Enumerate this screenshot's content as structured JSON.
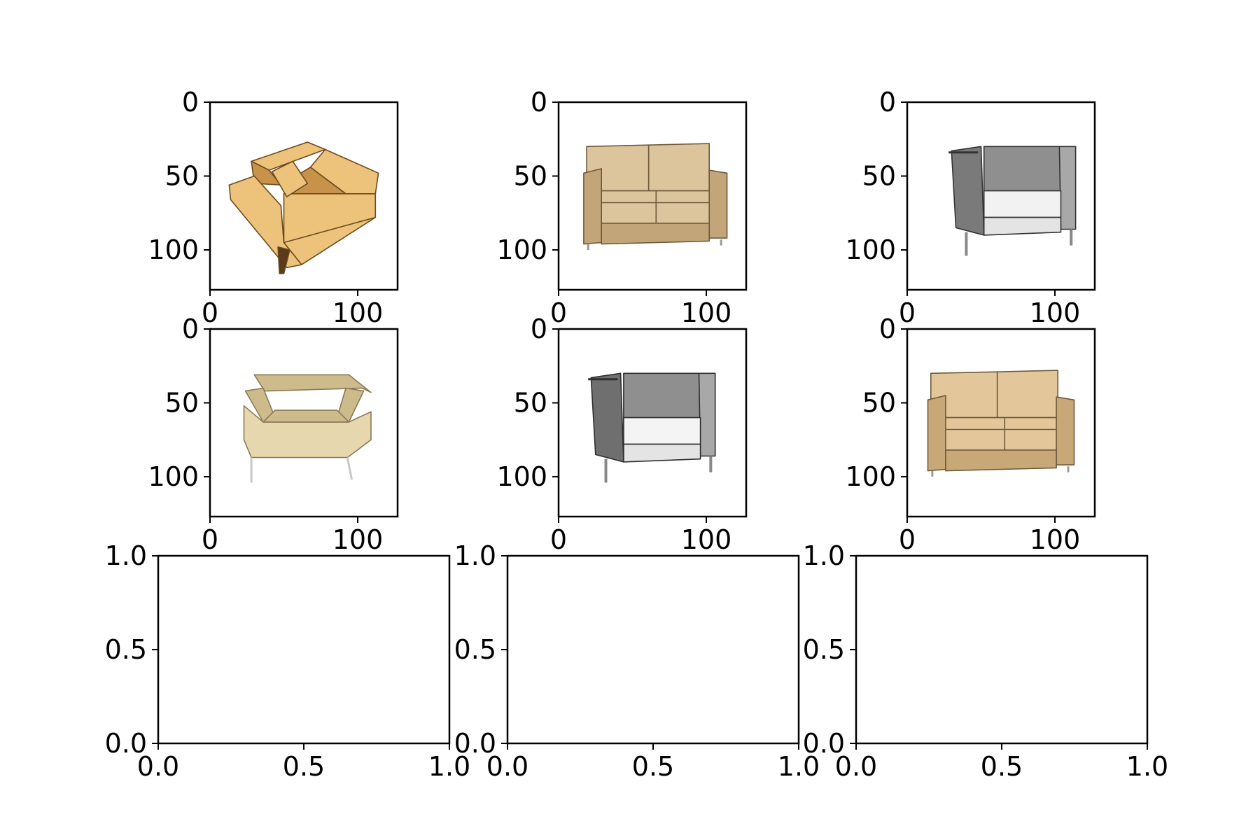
{
  "figure": {
    "layout": "3x3 subplot grid",
    "background": "#ffffff"
  },
  "chart_data": [
    {
      "type": "image",
      "content": "armchair-orange-angled",
      "colors": {
        "fill": "#edc27a",
        "shade": "#c7934a",
        "line": "#6b4a1f",
        "leg": "#5a3a1a"
      },
      "xlim": [
        0,
        127
      ],
      "ylim": [
        127,
        0
      ],
      "xticks": [
        {
          "value": 0,
          "label": "0"
        },
        {
          "value": 100,
          "label": "100"
        }
      ],
      "yticks": [
        {
          "value": 0,
          "label": "0"
        },
        {
          "value": 50,
          "label": "50"
        },
        {
          "value": 100,
          "label": "100"
        }
      ]
    },
    {
      "type": "image",
      "content": "loveseat-beige-front",
      "colors": {
        "fill": "#dcc49c",
        "shade": "#c2a67a",
        "line": "#6e5a3c",
        "leg": "#d8d8d8"
      },
      "xlim": [
        0,
        127
      ],
      "ylim": [
        127,
        0
      ],
      "xticks": [
        {
          "value": 0,
          "label": "0"
        },
        {
          "value": 100,
          "label": "100"
        }
      ],
      "yticks": [
        {
          "value": 0,
          "label": "0"
        },
        {
          "value": 50,
          "label": "50"
        },
        {
          "value": 100,
          "label": "100"
        }
      ]
    },
    {
      "type": "image",
      "content": "club-chair-grayscale",
      "colors": {
        "fill": "#f2f2f2",
        "shade": "#7a7a7a",
        "line": "#333333",
        "leg": "#888888"
      },
      "xlim": [
        0,
        127
      ],
      "ylim": [
        127,
        0
      ],
      "xticks": [
        {
          "value": 0,
          "label": "0"
        },
        {
          "value": 100,
          "label": "100"
        }
      ],
      "yticks": [
        {
          "value": 0,
          "label": "0"
        },
        {
          "value": 50,
          "label": "50"
        },
        {
          "value": 100,
          "label": "100"
        }
      ]
    },
    {
      "type": "image",
      "content": "armchair-cream-front",
      "colors": {
        "fill": "#e6d7ae",
        "shade": "#cdbb8c",
        "line": "#8a7a55",
        "leg": "#bbbbbb"
      },
      "xlim": [
        0,
        127
      ],
      "ylim": [
        127,
        0
      ],
      "xticks": [
        {
          "value": 0,
          "label": "0"
        },
        {
          "value": 100,
          "label": "100"
        }
      ],
      "yticks": [
        {
          "value": 0,
          "label": "0"
        },
        {
          "value": 50,
          "label": "50"
        },
        {
          "value": 100,
          "label": "100"
        }
      ]
    },
    {
      "type": "image",
      "content": "club-chair-grayscale-2",
      "colors": {
        "fill": "#f4f4f4",
        "shade": "#6f6f6f",
        "line": "#2e2e2e",
        "leg": "#888888"
      },
      "xlim": [
        0,
        127
      ],
      "ylim": [
        127,
        0
      ],
      "xticks": [
        {
          "value": 0,
          "label": "0"
        },
        {
          "value": 100,
          "label": "100"
        }
      ],
      "yticks": [
        {
          "value": 0,
          "label": "0"
        },
        {
          "value": 50,
          "label": "50"
        },
        {
          "value": 100,
          "label": "100"
        }
      ]
    },
    {
      "type": "image",
      "content": "loveseat-beige-angled",
      "colors": {
        "fill": "#e3c79b",
        "shade": "#c9a878",
        "line": "#6e5a3c",
        "leg": "#d0d0d0"
      },
      "xlim": [
        0,
        127
      ],
      "ylim": [
        127,
        0
      ],
      "xticks": [
        {
          "value": 0,
          "label": "0"
        },
        {
          "value": 100,
          "label": "100"
        }
      ],
      "yticks": [
        {
          "value": 0,
          "label": "0"
        },
        {
          "value": 50,
          "label": "50"
        },
        {
          "value": 100,
          "label": "100"
        }
      ]
    },
    {
      "type": "empty",
      "xlim": [
        0,
        1
      ],
      "ylim": [
        0,
        1
      ],
      "xticks": [
        {
          "value": 0,
          "label": "0.0"
        },
        {
          "value": 0.5,
          "label": "0.5"
        },
        {
          "value": 1,
          "label": "1.0"
        }
      ],
      "yticks": [
        {
          "value": 0,
          "label": "0.0"
        },
        {
          "value": 0.5,
          "label": "0.5"
        },
        {
          "value": 1,
          "label": "1.0"
        }
      ]
    },
    {
      "type": "empty",
      "xlim": [
        0,
        1
      ],
      "ylim": [
        0,
        1
      ],
      "xticks": [
        {
          "value": 0,
          "label": "0.0"
        },
        {
          "value": 0.5,
          "label": "0.5"
        },
        {
          "value": 1,
          "label": "1.0"
        }
      ],
      "yticks": [
        {
          "value": 0,
          "label": "0.0"
        },
        {
          "value": 0.5,
          "label": "0.5"
        },
        {
          "value": 1,
          "label": "1.0"
        }
      ]
    },
    {
      "type": "empty",
      "xlim": [
        0,
        1
      ],
      "ylim": [
        0,
        1
      ],
      "xticks": [
        {
          "value": 0,
          "label": "0.0"
        },
        {
          "value": 0.5,
          "label": "0.5"
        },
        {
          "value": 1,
          "label": "1.0"
        }
      ],
      "yticks": [
        {
          "value": 0,
          "label": "0.0"
        },
        {
          "value": 0.5,
          "label": "0.5"
        },
        {
          "value": 1,
          "label": "1.0"
        }
      ]
    }
  ]
}
